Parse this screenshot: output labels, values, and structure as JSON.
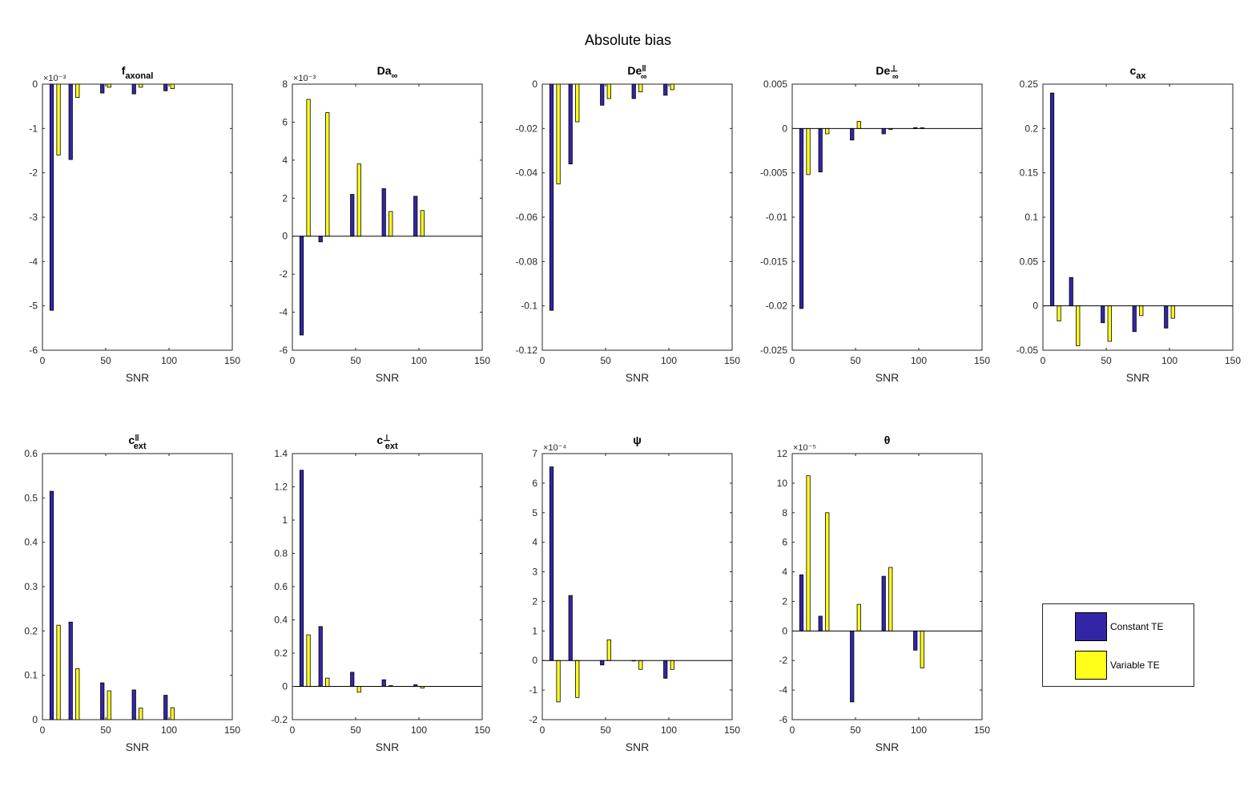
{
  "figure_title": "Absolute bias",
  "colors": {
    "constant": "#3326a6",
    "variable": "#ffff19"
  },
  "legend": {
    "placement": "bottom-right",
    "items": [
      {
        "label": "Constant TE",
        "color": "#3326a6"
      },
      {
        "label": "Variable TE",
        "color": "#ffff19"
      }
    ]
  },
  "chart_data": [
    {
      "type": "bar",
      "title": "f",
      "title_sub": "axonal",
      "title_sup": "",
      "xlabel": "SNR",
      "scale_label": "×10⁻³",
      "xlim": [
        0,
        150
      ],
      "xticks": [
        0,
        50,
        100,
        150
      ],
      "ylim": [
        -6,
        0
      ],
      "yticks": [
        -6,
        -5,
        -4,
        -3,
        -2,
        -1,
        0
      ],
      "ytick_labels": [
        "-6",
        "-5",
        "-4",
        "-3",
        "-2",
        "-1",
        "0"
      ],
      "x": [
        10,
        25,
        50,
        75,
        100
      ],
      "series": [
        {
          "name": "Constant TE",
          "values": [
            -5.1,
            -1.7,
            -0.2,
            -0.22,
            -0.15
          ]
        },
        {
          "name": "Variable TE",
          "values": [
            -1.6,
            -0.3,
            -0.07,
            -0.07,
            -0.1
          ]
        }
      ]
    },
    {
      "type": "bar",
      "title": "Da",
      "title_sub": "∞",
      "title_sup": "",
      "xlabel": "SNR",
      "scale_label": "×10⁻³",
      "xlim": [
        0,
        150
      ],
      "xticks": [
        0,
        50,
        100,
        150
      ],
      "ylim": [
        -6,
        8
      ],
      "yticks": [
        -6,
        -4,
        -2,
        0,
        2,
        4,
        6,
        8
      ],
      "ytick_labels": [
        "-6",
        "-4",
        "-2",
        "0",
        "2",
        "4",
        "6",
        "8"
      ],
      "x": [
        10,
        25,
        50,
        75,
        100
      ],
      "series": [
        {
          "name": "Constant TE",
          "values": [
            -5.2,
            -0.3,
            2.2,
            2.5,
            2.1
          ]
        },
        {
          "name": "Variable TE",
          "values": [
            7.2,
            6.5,
            3.8,
            1.3,
            1.35
          ]
        }
      ]
    },
    {
      "type": "bar",
      "title": "De",
      "title_sub": "∞",
      "title_sup": "‖",
      "xlabel": "SNR",
      "scale_label": "",
      "xlim": [
        0,
        150
      ],
      "xticks": [
        0,
        50,
        100,
        150
      ],
      "ylim": [
        -0.12,
        0
      ],
      "yticks": [
        -0.12,
        -0.1,
        -0.08,
        -0.06,
        -0.04,
        -0.02,
        0
      ],
      "ytick_labels": [
        "-0.12",
        "-0.1",
        "-0.08",
        "-0.06",
        "-0.04",
        "-0.02",
        "0"
      ],
      "x": [
        10,
        25,
        50,
        75,
        100
      ],
      "series": [
        {
          "name": "Constant TE",
          "values": [
            -0.102,
            -0.036,
            -0.0095,
            -0.0065,
            -0.005
          ]
        },
        {
          "name": "Variable TE",
          "values": [
            -0.045,
            -0.017,
            -0.0065,
            -0.0035,
            -0.0025
          ]
        }
      ]
    },
    {
      "type": "bar",
      "title": "De",
      "title_sub": "∞",
      "title_sup": "⊥",
      "xlabel": "SNR",
      "scale_label": "",
      "xlim": [
        0,
        150
      ],
      "xticks": [
        0,
        50,
        100,
        150
      ],
      "ylim": [
        -0.025,
        0.005
      ],
      "yticks": [
        -0.025,
        -0.02,
        -0.015,
        -0.01,
        -0.005,
        0,
        0.005
      ],
      "ytick_labels": [
        "-0.025",
        "-0.02",
        "-0.015",
        "-0.01",
        "-0.005",
        "0",
        "0.005"
      ],
      "x": [
        10,
        25,
        50,
        75,
        100
      ],
      "series": [
        {
          "name": "Constant TE",
          "values": [
            -0.0203,
            -0.0049,
            -0.0013,
            -0.0006,
            0.0001
          ]
        },
        {
          "name": "Variable TE",
          "values": [
            -0.0052,
            -0.0006,
            0.0008,
            -0.0001,
            0.0001
          ]
        }
      ]
    },
    {
      "type": "bar",
      "title": "c",
      "title_sub": "ax",
      "title_sup": "",
      "xlabel": "SNR",
      "scale_label": "",
      "xlim": [
        0,
        150
      ],
      "xticks": [
        0,
        50,
        100,
        150
      ],
      "ylim": [
        -0.05,
        0.25
      ],
      "yticks": [
        -0.05,
        0,
        0.05,
        0.1,
        0.15,
        0.2,
        0.25
      ],
      "ytick_labels": [
        "-0.05",
        "0",
        "0.05",
        "0.1",
        "0.15",
        "0.2",
        "0.25"
      ],
      "x": [
        10,
        25,
        50,
        75,
        100
      ],
      "series": [
        {
          "name": "Constant TE",
          "values": [
            0.24,
            0.032,
            -0.019,
            -0.029,
            -0.025
          ]
        },
        {
          "name": "Variable TE",
          "values": [
            -0.017,
            -0.045,
            -0.04,
            -0.011,
            -0.014
          ]
        }
      ]
    },
    {
      "type": "bar",
      "title": "c",
      "title_sub": "ext",
      "title_sup": "‖",
      "xlabel": "SNR",
      "scale_label": "",
      "xlim": [
        0,
        150
      ],
      "xticks": [
        0,
        50,
        100,
        150
      ],
      "ylim": [
        0,
        0.6
      ],
      "yticks": [
        0,
        0.1,
        0.2,
        0.3,
        0.4,
        0.5,
        0.6
      ],
      "ytick_labels": [
        "0",
        "0.1",
        "0.2",
        "0.3",
        "0.4",
        "0.5",
        "0.6"
      ],
      "x": [
        10,
        25,
        50,
        75,
        100
      ],
      "series": [
        {
          "name": "Constant TE",
          "values": [
            0.515,
            0.22,
            0.083,
            0.067,
            0.055
          ]
        },
        {
          "name": "Variable TE",
          "values": [
            0.213,
            0.115,
            0.065,
            0.026,
            0.027
          ]
        }
      ]
    },
    {
      "type": "bar",
      "title": "c",
      "title_sub": "ext",
      "title_sup": "⊥",
      "xlabel": "SNR",
      "scale_label": "",
      "xlim": [
        0,
        150
      ],
      "xticks": [
        0,
        50,
        100,
        150
      ],
      "ylim": [
        -0.2,
        1.4
      ],
      "yticks": [
        -0.2,
        0,
        0.2,
        0.4,
        0.6,
        0.8,
        1,
        1.2,
        1.4
      ],
      "ytick_labels": [
        "-0.2",
        "0",
        "0.2",
        "0.4",
        "0.6",
        "0.8",
        "1",
        "1.2",
        "1.4"
      ],
      "x": [
        10,
        25,
        50,
        75,
        100
      ],
      "series": [
        {
          "name": "Constant TE",
          "values": [
            1.3,
            0.36,
            0.085,
            0.04,
            0.01
          ]
        },
        {
          "name": "Variable TE",
          "values": [
            0.31,
            0.05,
            -0.035,
            0.005,
            -0.01
          ]
        }
      ]
    },
    {
      "type": "bar",
      "title": "ψ",
      "title_sub": "",
      "title_sup": "",
      "xlabel": "SNR",
      "scale_label": "×10⁻⁴",
      "xlim": [
        0,
        150
      ],
      "xticks": [
        0,
        50,
        100,
        150
      ],
      "ylim": [
        -2,
        7
      ],
      "yticks": [
        -2,
        -1,
        0,
        1,
        2,
        3,
        4,
        5,
        6,
        7
      ],
      "ytick_labels": [
        "-2",
        "-1",
        "0",
        "1",
        "2",
        "3",
        "4",
        "5",
        "6",
        "7"
      ],
      "x": [
        10,
        25,
        50,
        75,
        100
      ],
      "series": [
        {
          "name": "Constant TE",
          "values": [
            6.55,
            2.2,
            -0.15,
            0,
            -0.6
          ]
        },
        {
          "name": "Variable TE",
          "values": [
            -1.4,
            -1.25,
            0.7,
            -0.3,
            -0.3
          ]
        }
      ]
    },
    {
      "type": "bar",
      "title": "θ",
      "title_sub": "",
      "title_sup": "",
      "xlabel": "SNR",
      "scale_label": "×10⁻⁵",
      "xlim": [
        0,
        150
      ],
      "xticks": [
        0,
        50,
        100,
        150
      ],
      "ylim": [
        -6,
        12
      ],
      "yticks": [
        -6,
        -4,
        -2,
        0,
        2,
        4,
        6,
        8,
        10,
        12
      ],
      "ytick_labels": [
        "-6",
        "-4",
        "-2",
        "0",
        "2",
        "4",
        "6",
        "8",
        "10",
        "12"
      ],
      "x": [
        10,
        25,
        50,
        75,
        100
      ],
      "series": [
        {
          "name": "Constant TE",
          "values": [
            3.8,
            1.0,
            -4.8,
            3.7,
            -1.3
          ]
        },
        {
          "name": "Variable TE",
          "values": [
            10.5,
            8.0,
            1.8,
            4.3,
            -2.5
          ]
        }
      ]
    }
  ]
}
